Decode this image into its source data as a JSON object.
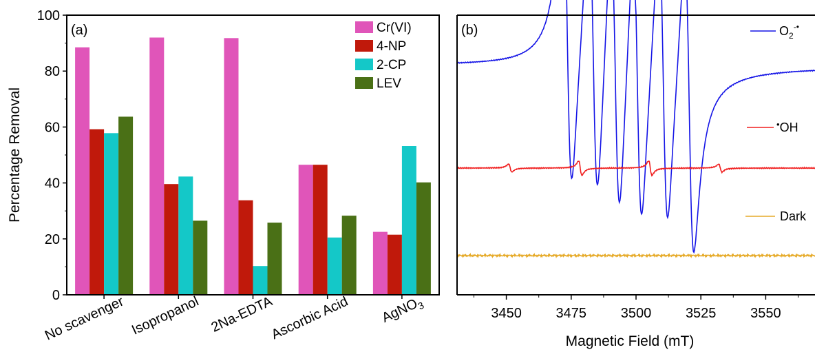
{
  "chart_data": [
    {
      "type": "bar",
      "panel_label": "(a)",
      "ylabel": "Percentage Removal",
      "xlabel": "",
      "ylim": [
        0,
        100
      ],
      "yticks": [
        0,
        20,
        40,
        60,
        80,
        100
      ],
      "categories": [
        "No scavenger",
        "Isopropanol",
        "2Na-EDTA",
        "Ascorbic Acid",
        "AgNO3"
      ],
      "series": [
        {
          "name": "Cr(VI)",
          "color": "#e055b9",
          "values": [
            88.5,
            92,
            91.8,
            46.5,
            22.5
          ]
        },
        {
          "name": "4-NP",
          "color": "#c0190b",
          "values": [
            59.2,
            39.6,
            33.8,
            46.5,
            21.5
          ]
        },
        {
          "name": "2-CP",
          "color": "#14c8c8",
          "values": [
            57.8,
            42.3,
            10.3,
            20.5,
            53.2
          ]
        },
        {
          "name": "LEV",
          "color": "#4a7016",
          "values": [
            63.7,
            26.5,
            25.8,
            28.3,
            40.2
          ]
        }
      ],
      "legend_position": "top-right",
      "grid": false
    },
    {
      "type": "line",
      "panel_label": "(b)",
      "xlabel": "Magnetic Field (mT)",
      "ylabel": "",
      "xlim": [
        3431,
        3569
      ],
      "xticks": [
        3450,
        3475,
        3500,
        3525,
        3550
      ],
      "yticks_shown": false,
      "series": [
        {
          "name": "O2-•",
          "color": "#1414e6"
        },
        {
          "name": "•OH",
          "color": "#f01e1e"
        },
        {
          "name": "Dark",
          "color": "#e6aa28"
        }
      ],
      "legend_position": "right",
      "grid": false
    }
  ],
  "legend_a": {
    "cr": "Cr(VI)",
    "np": "4-NP",
    "cp": "2-CP",
    "lev": "LEV"
  },
  "legend_b": {
    "o2_base": "O",
    "o2_sub": "2",
    "o2_sup": "-•",
    "oh_dot": "•",
    "oh_base": "OH",
    "dark": "Dark"
  },
  "categories_display": {
    "c0": "No scavenger",
    "c1": "Isopropanol",
    "c2": "2Na-EDTA",
    "c3": "Ascorbic Acid",
    "c4_base": "AgNO",
    "c4_sub": "3"
  },
  "colors": {
    "cr": "#e055b9",
    "np": "#c0190b",
    "cp": "#14c8c8",
    "lev": "#4a7016",
    "o2": "#1414e6",
    "oh": "#f01e1e",
    "dark": "#e6aa28"
  }
}
